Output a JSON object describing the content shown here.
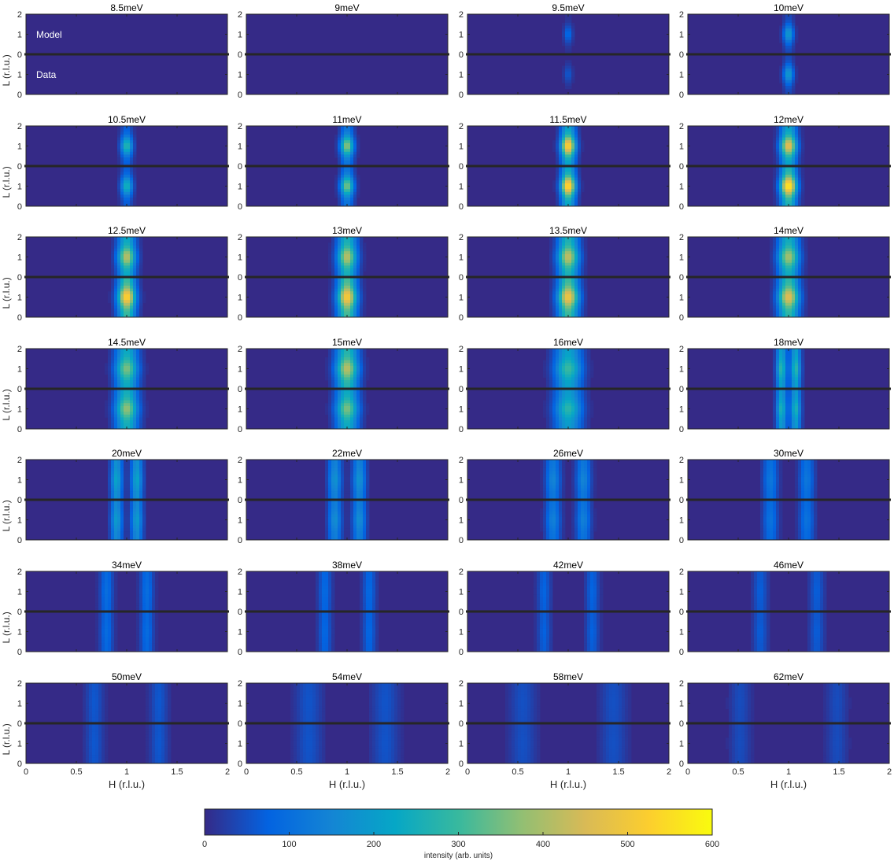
{
  "chart_data": {
    "type": "heatmap",
    "panel_titles": [
      "8.5meV",
      "9meV",
      "9.5meV",
      "10meV",
      "10.5meV",
      "11meV",
      "11.5meV",
      "12meV",
      "12.5meV",
      "13meV",
      "13.5meV",
      "14meV",
      "14.5meV",
      "15meV",
      "16meV",
      "18meV",
      "20meV",
      "22meV",
      "26meV",
      "30meV",
      "34meV",
      "38meV",
      "42meV",
      "46meV",
      "50meV",
      "54meV",
      "58meV",
      "62meV"
    ],
    "energies_meV": [
      8.5,
      9,
      9.5,
      10,
      10.5,
      11,
      11.5,
      12,
      12.5,
      13,
      13.5,
      14,
      14.5,
      15,
      16,
      18,
      20,
      22,
      26,
      30,
      34,
      38,
      42,
      46,
      50,
      54,
      58,
      62
    ],
    "layout": {
      "rows": 7,
      "cols": 4
    },
    "subpanel_labels": {
      "top": "Model",
      "bottom": "Data"
    },
    "xlabel": "H (r.l.u.)",
    "ylabel": "L (r.l.u.)",
    "xlim": [
      0,
      2
    ],
    "ylim_each_half": [
      0,
      2
    ],
    "x_ticks": [
      "0",
      "0.5",
      "1",
      "1.5",
      "2"
    ],
    "y_ticks_top_half": [
      "2",
      "1",
      "0"
    ],
    "y_ticks_bottom_half": [
      "1",
      "0"
    ],
    "colorbar": {
      "label": "intensity (arb. units)",
      "range": [
        0,
        600
      ],
      "ticks": [
        "0",
        "100",
        "200",
        "300",
        "400",
        "500",
        "600"
      ],
      "colormap": "parula",
      "colors": [
        "#352a87",
        "#0363e1",
        "#1485d4",
        "#06a7c6",
        "#38b99e",
        "#92bf73",
        "#d9ba56",
        "#fcce2e",
        "#f9fb0e"
      ]
    },
    "series": [
      {
        "E": 8.5,
        "H_centers": [
          1.0
        ],
        "H_width": 0.0,
        "model_peak": 0,
        "data_peak": 0,
        "L_mod": 0
      },
      {
        "E": 9,
        "H_centers": [
          1.0
        ],
        "H_width": 0.0,
        "model_peak": 0,
        "data_peak": 0,
        "L_mod": 0
      },
      {
        "E": 9.5,
        "H_centers": [
          1.0
        ],
        "H_width": 0.03,
        "model_peak": 90,
        "data_peak": 60,
        "L_mod": 0.9
      },
      {
        "E": 10,
        "H_centers": [
          1.0
        ],
        "H_width": 0.035,
        "model_peak": 200,
        "data_peak": 200,
        "L_mod": 0.8
      },
      {
        "E": 10.5,
        "H_centers": [
          1.0
        ],
        "H_width": 0.04,
        "model_peak": 280,
        "data_peak": 260,
        "L_mod": 0.75
      },
      {
        "E": 11,
        "H_centers": [
          1.0
        ],
        "H_width": 0.045,
        "model_peak": 380,
        "data_peak": 360,
        "L_mod": 0.7
      },
      {
        "E": 11.5,
        "H_centers": [
          1.0
        ],
        "H_width": 0.05,
        "model_peak": 540,
        "data_peak": 560,
        "L_mod": 0.6
      },
      {
        "E": 12,
        "H_centers": [
          1.0
        ],
        "H_width": 0.055,
        "model_peak": 480,
        "data_peak": 580,
        "L_mod": 0.55
      },
      {
        "E": 12.5,
        "H_centers": [
          1.0
        ],
        "H_width": 0.06,
        "model_peak": 420,
        "data_peak": 540,
        "L_mod": 0.45
      },
      {
        "E": 13,
        "H_centers": [
          1.0
        ],
        "H_width": 0.065,
        "model_peak": 420,
        "data_peak": 520,
        "L_mod": 0.4
      },
      {
        "E": 13.5,
        "H_centers": [
          1.0
        ],
        "H_width": 0.07,
        "model_peak": 430,
        "data_peak": 500,
        "L_mod": 0.4
      },
      {
        "E": 14,
        "H_centers": [
          1.0
        ],
        "H_width": 0.07,
        "model_peak": 400,
        "data_peak": 470,
        "L_mod": 0.4
      },
      {
        "E": 14.5,
        "H_centers": [
          1.0
        ],
        "H_width": 0.075,
        "model_peak": 360,
        "data_peak": 380,
        "L_mod": 0.35
      },
      {
        "E": 15,
        "H_centers": [
          1.0
        ],
        "H_width": 0.075,
        "model_peak": 420,
        "data_peak": 360,
        "L_mod": 0.35
      },
      {
        "E": 16,
        "H_centers": [
          1.0
        ],
        "H_width": 0.09,
        "model_peak": 300,
        "data_peak": 280,
        "L_mod": 0.3
      },
      {
        "E": 18,
        "H_centers": [
          0.93,
          1.07
        ],
        "H_width": 0.035,
        "model_peak": 280,
        "data_peak": 260,
        "L_mod": 0.25
      },
      {
        "E": 20,
        "H_centers": [
          0.9,
          1.1
        ],
        "H_width": 0.04,
        "model_peak": 220,
        "data_peak": 200,
        "L_mod": 0.2
      },
      {
        "E": 22,
        "H_centers": [
          0.88,
          1.12
        ],
        "H_width": 0.045,
        "model_peak": 180,
        "data_peak": 170,
        "L_mod": 0.2
      },
      {
        "E": 26,
        "H_centers": [
          0.85,
          1.15
        ],
        "H_width": 0.05,
        "model_peak": 150,
        "data_peak": 140,
        "L_mod": 0.2
      },
      {
        "E": 30,
        "H_centers": [
          0.82,
          1.18
        ],
        "H_width": 0.05,
        "model_peak": 120,
        "data_peak": 110,
        "L_mod": 0.15
      },
      {
        "E": 34,
        "H_centers": [
          0.8,
          1.2
        ],
        "H_width": 0.045,
        "model_peak": 100,
        "data_peak": 95,
        "L_mod": 0.1
      },
      {
        "E": 38,
        "H_centers": [
          0.78,
          1.22
        ],
        "H_width": 0.045,
        "model_peak": 90,
        "data_peak": 85,
        "L_mod": 0.1
      },
      {
        "E": 42,
        "H_centers": [
          0.76,
          1.24
        ],
        "H_width": 0.045,
        "model_peak": 80,
        "data_peak": 75,
        "L_mod": 0.1
      },
      {
        "E": 46,
        "H_centers": [
          0.72,
          1.28
        ],
        "H_width": 0.05,
        "model_peak": 70,
        "data_peak": 68,
        "L_mod": 0.1
      },
      {
        "E": 50,
        "H_centers": [
          0.68,
          1.32
        ],
        "H_width": 0.06,
        "model_peak": 60,
        "data_peak": 60,
        "L_mod": 0.05
      },
      {
        "E": 54,
        "H_centers": [
          0.62,
          1.38
        ],
        "H_width": 0.09,
        "model_peak": 55,
        "data_peak": 55,
        "L_mod": 0.05
      },
      {
        "E": 58,
        "H_centers": [
          0.55,
          1.45
        ],
        "H_width": 0.09,
        "model_peak": 50,
        "data_peak": 50,
        "L_mod": 0.05
      },
      {
        "E": 62,
        "H_centers": [
          0.52,
          1.48
        ],
        "H_width": 0.07,
        "model_peak": 45,
        "data_peak": 45,
        "L_mod": 0.05
      }
    ]
  }
}
